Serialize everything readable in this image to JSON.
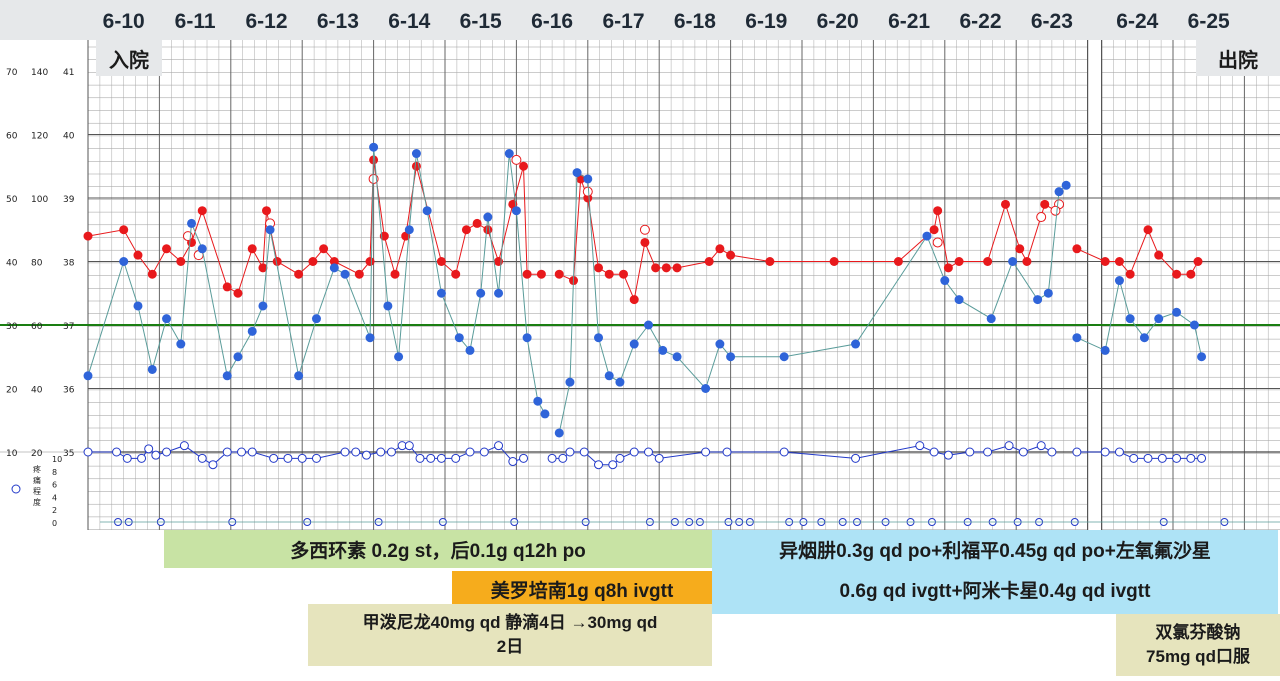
{
  "header": {
    "dates": [
      "6-10",
      "6-11",
      "6-12",
      "6-13",
      "6-14",
      "6-15",
      "6-16",
      "6-17",
      "6-18",
      "6-19",
      "6-20",
      "6-21",
      "6-22",
      "6-23",
      "6-24",
      "6-25"
    ],
    "admit_label": "入院",
    "discharge_label": "出院"
  },
  "axis": {
    "rows": [
      {
        "a": "70",
        "b": "140",
        "c": "41"
      },
      {
        "a": "60",
        "b": "120",
        "c": "40"
      },
      {
        "a": "50",
        "b": "100",
        "c": "39"
      },
      {
        "a": "40",
        "b": "80",
        "c": "38"
      },
      {
        "a": "30",
        "b": "60",
        "c": "37"
      },
      {
        "a": "20",
        "b": "40",
        "c": "36"
      },
      {
        "a": "10",
        "b": "20",
        "c": "35"
      }
    ],
    "pain_ticks": [
      "10",
      "8",
      "6",
      "4",
      "2",
      "0"
    ],
    "pain_label_chars": [
      "疼",
      "痛",
      "程",
      "度"
    ]
  },
  "medications": {
    "m1": "多西环素 0.2g st，后0.1g q12h po",
    "m2": "美罗培南1g q8h ivgtt",
    "m3_line1": "甲泼尼龙40mg qd 静滴4日 →30mg qd",
    "m3_line2": "2日",
    "m4_line1": "异烟肼0.3g qd po+利福平0.45g qd po+左氧氟沙星",
    "m4_line2": "0.6g qd ivgtt+阿米卡星0.4g qd ivgtt",
    "m5_line1": "双氯芬酸钠",
    "m5_line2": "75mg qd口服"
  },
  "colors": {
    "temperature": "#e8191c",
    "pulse": "#2f64d9",
    "pulse_line": "#5a9c9a",
    "respiration": "#2239c9",
    "reference_line": "#1a7e12",
    "header_bg": "#e6e8ea",
    "med_green": "#c8e3a4",
    "med_orange": "#f6ac1c",
    "med_khaki": "#e6e4bd",
    "med_blue": "#aee3f6"
  },
  "chart_data": {
    "type": "line",
    "x_unit": "day index (0 = 6-10, 15 = 6-25)",
    "x_categories": [
      "6-10",
      "6-11",
      "6-12",
      "6-13",
      "6-14",
      "6-15",
      "6-16",
      "6-17",
      "6-18",
      "6-19",
      "6-20",
      "6-21",
      "6-22",
      "6-23",
      "6-24",
      "6-25"
    ],
    "reference_line_temperature": 37.0,
    "temperature": [
      [
        0.0,
        38.4
      ],
      [
        0.5,
        38.5
      ],
      [
        0.7,
        38.1
      ],
      [
        0.9,
        37.8
      ],
      [
        1.1,
        38.2
      ],
      [
        1.3,
        38.0
      ],
      [
        1.45,
        38.3
      ],
      [
        1.6,
        38.8
      ],
      [
        1.95,
        37.6
      ],
      [
        2.1,
        37.5
      ],
      [
        2.3,
        38.2
      ],
      [
        2.45,
        37.9
      ],
      [
        2.5,
        38.8
      ],
      [
        2.65,
        38.0
      ],
      [
        2.95,
        37.8
      ],
      [
        3.15,
        38.0
      ],
      [
        3.3,
        38.2
      ],
      [
        3.45,
        38.0
      ],
      [
        3.8,
        37.8
      ],
      [
        3.95,
        38.0
      ],
      [
        4.0,
        39.6
      ],
      [
        4.15,
        38.4
      ],
      [
        4.3,
        37.8
      ],
      [
        4.45,
        38.4
      ],
      [
        4.6,
        39.5
      ],
      [
        4.95,
        38.0
      ],
      [
        5.15,
        37.8
      ],
      [
        5.3,
        38.5
      ],
      [
        5.45,
        38.6
      ],
      [
        5.6,
        38.5
      ],
      [
        5.75,
        38.0
      ],
      [
        5.95,
        38.9
      ],
      [
        6.1,
        39.5
      ],
      [
        6.15,
        37.8
      ],
      [
        6.35,
        37.8
      ],
      [
        6.6,
        37.8
      ],
      [
        6.8,
        37.7
      ],
      [
        6.9,
        39.3
      ],
      [
        7.0,
        39.0
      ],
      [
        7.15,
        37.9
      ],
      [
        7.3,
        37.8
      ],
      [
        7.5,
        37.8
      ],
      [
        7.65,
        37.4
      ],
      [
        7.8,
        38.3
      ],
      [
        7.95,
        37.9
      ],
      [
        8.1,
        37.9
      ],
      [
        8.25,
        37.9
      ],
      [
        8.7,
        38.0
      ],
      [
        8.85,
        38.2
      ],
      [
        9.0,
        38.1
      ],
      [
        9.55,
        38.0
      ],
      [
        10.45,
        38.0
      ],
      [
        11.35,
        38.0
      ],
      [
        11.85,
        38.5
      ],
      [
        11.9,
        38.8
      ],
      [
        12.05,
        37.9
      ],
      [
        12.2,
        38.0
      ],
      [
        12.6,
        38.0
      ],
      [
        12.85,
        38.9
      ],
      [
        13.05,
        38.2
      ],
      [
        13.15,
        38.0
      ],
      [
        13.4,
        38.9
      ],
      [
        13.55,
        38.8
      ],
      [
        13.85,
        38.2
      ],
      [
        14.05,
        38.0
      ],
      [
        14.25,
        38.0
      ],
      [
        14.4,
        37.8
      ],
      [
        14.65,
        38.5
      ],
      [
        14.8,
        38.1
      ],
      [
        15.05,
        37.8
      ],
      [
        15.25,
        37.8
      ],
      [
        15.35,
        38.0
      ]
    ],
    "temperature_hollow": [
      [
        1.4,
        38.4
      ],
      [
        1.55,
        38.1
      ],
      [
        2.55,
        38.6
      ],
      [
        4.0,
        39.3
      ],
      [
        6.0,
        39.6
      ],
      [
        7.0,
        39.1
      ],
      [
        7.8,
        38.5
      ],
      [
        11.9,
        38.3
      ],
      [
        13.35,
        38.7
      ],
      [
        13.6,
        38.9
      ],
      [
        13.55,
        38.8
      ]
    ],
    "pulse": [
      [
        0.0,
        44
      ],
      [
        0.5,
        80
      ],
      [
        0.7,
        66
      ],
      [
        0.9,
        46
      ],
      [
        1.1,
        62
      ],
      [
        1.3,
        54
      ],
      [
        1.45,
        92
      ],
      [
        1.6,
        84
      ],
      [
        1.95,
        44
      ],
      [
        2.1,
        50
      ],
      [
        2.3,
        58
      ],
      [
        2.45,
        66
      ],
      [
        2.55,
        90
      ],
      [
        2.95,
        44
      ],
      [
        3.2,
        62
      ],
      [
        3.45,
        78
      ],
      [
        3.6,
        76
      ],
      [
        3.95,
        56
      ],
      [
        4.0,
        116
      ],
      [
        4.2,
        66
      ],
      [
        4.35,
        50
      ],
      [
        4.5,
        90
      ],
      [
        4.6,
        114
      ],
      [
        4.75,
        96
      ],
      [
        4.95,
        70
      ],
      [
        5.2,
        56
      ],
      [
        5.35,
        52
      ],
      [
        5.5,
        70
      ],
      [
        5.6,
        94
      ],
      [
        5.75,
        70
      ],
      [
        5.9,
        114
      ],
      [
        6.0,
        96
      ],
      [
        6.15,
        56
      ],
      [
        6.3,
        36
      ],
      [
        6.4,
        32
      ],
      [
        6.6,
        26
      ],
      [
        6.75,
        42
      ],
      [
        6.85,
        108
      ],
      [
        7.0,
        106
      ],
      [
        7.15,
        56
      ],
      [
        7.3,
        44
      ],
      [
        7.45,
        42
      ],
      [
        7.65,
        54
      ],
      [
        7.85,
        60
      ],
      [
        8.05,
        52
      ],
      [
        8.25,
        50
      ],
      [
        8.65,
        40
      ],
      [
        8.85,
        54
      ],
      [
        9.0,
        50
      ],
      [
        9.75,
        50
      ],
      [
        10.75,
        54
      ],
      [
        11.75,
        88
      ],
      [
        12.0,
        74
      ],
      [
        12.2,
        68
      ],
      [
        12.65,
        62
      ],
      [
        12.95,
        80
      ],
      [
        13.3,
        68
      ],
      [
        13.45,
        70
      ],
      [
        13.6,
        102
      ],
      [
        13.7,
        104
      ],
      [
        13.85,
        56
      ],
      [
        14.05,
        52
      ],
      [
        14.25,
        74
      ],
      [
        14.4,
        62
      ],
      [
        14.6,
        56
      ],
      [
        14.8,
        62
      ],
      [
        15.05,
        64
      ],
      [
        15.3,
        60
      ],
      [
        15.4,
        50
      ]
    ],
    "respiration": [
      [
        0.0,
        20
      ],
      [
        0.4,
        20
      ],
      [
        0.55,
        18
      ],
      [
        0.75,
        18
      ],
      [
        0.85,
        21
      ],
      [
        0.95,
        19
      ],
      [
        1.1,
        20
      ],
      [
        1.35,
        22
      ],
      [
        1.6,
        18
      ],
      [
        1.75,
        16
      ],
      [
        1.95,
        20
      ],
      [
        2.15,
        20
      ],
      [
        2.3,
        20
      ],
      [
        2.6,
        18
      ],
      [
        2.8,
        18
      ],
      [
        3.0,
        18
      ],
      [
        3.2,
        18
      ],
      [
        3.6,
        20
      ],
      [
        3.75,
        20
      ],
      [
        3.9,
        19
      ],
      [
        4.1,
        20
      ],
      [
        4.25,
        20
      ],
      [
        4.4,
        22
      ],
      [
        4.5,
        22
      ],
      [
        4.65,
        18
      ],
      [
        4.8,
        18
      ],
      [
        4.95,
        18
      ],
      [
        5.15,
        18
      ],
      [
        5.35,
        20
      ],
      [
        5.55,
        20
      ],
      [
        5.75,
        22
      ],
      [
        5.95,
        17
      ],
      [
        6.1,
        18
      ],
      [
        6.5,
        18
      ],
      [
        6.65,
        18
      ],
      [
        6.75,
        20
      ],
      [
        6.95,
        20
      ],
      [
        7.15,
        16
      ],
      [
        7.35,
        16
      ],
      [
        7.45,
        18
      ],
      [
        7.65,
        20
      ],
      [
        7.85,
        20
      ],
      [
        8.0,
        18
      ],
      [
        8.65,
        20
      ],
      [
        8.95,
        20
      ],
      [
        9.75,
        20
      ],
      [
        10.75,
        18
      ],
      [
        11.65,
        22
      ],
      [
        11.85,
        20
      ],
      [
        12.05,
        19
      ],
      [
        12.35,
        20
      ],
      [
        12.6,
        20
      ],
      [
        12.9,
        22
      ],
      [
        13.1,
        20
      ],
      [
        13.35,
        22
      ],
      [
        13.5,
        20
      ],
      [
        13.85,
        20
      ],
      [
        14.05,
        20
      ],
      [
        14.25,
        20
      ],
      [
        14.45,
        18
      ],
      [
        14.65,
        18
      ],
      [
        14.85,
        18
      ],
      [
        15.05,
        18
      ],
      [
        15.25,
        18
      ],
      [
        15.4,
        18
      ]
    ],
    "pain_markers": [
      0.0,
      0.15,
      0.6,
      1.6,
      2.65,
      3.65,
      4.55,
      5.55,
      6.55,
      7.45,
      7.8,
      8.0,
      8.15,
      8.55,
      8.7,
      8.85,
      9.4,
      9.6,
      9.85,
      10.15,
      10.35,
      10.75,
      11.1,
      11.4,
      11.9,
      12.25,
      12.6,
      12.9,
      13.4,
      14.45,
      15.3
    ]
  }
}
